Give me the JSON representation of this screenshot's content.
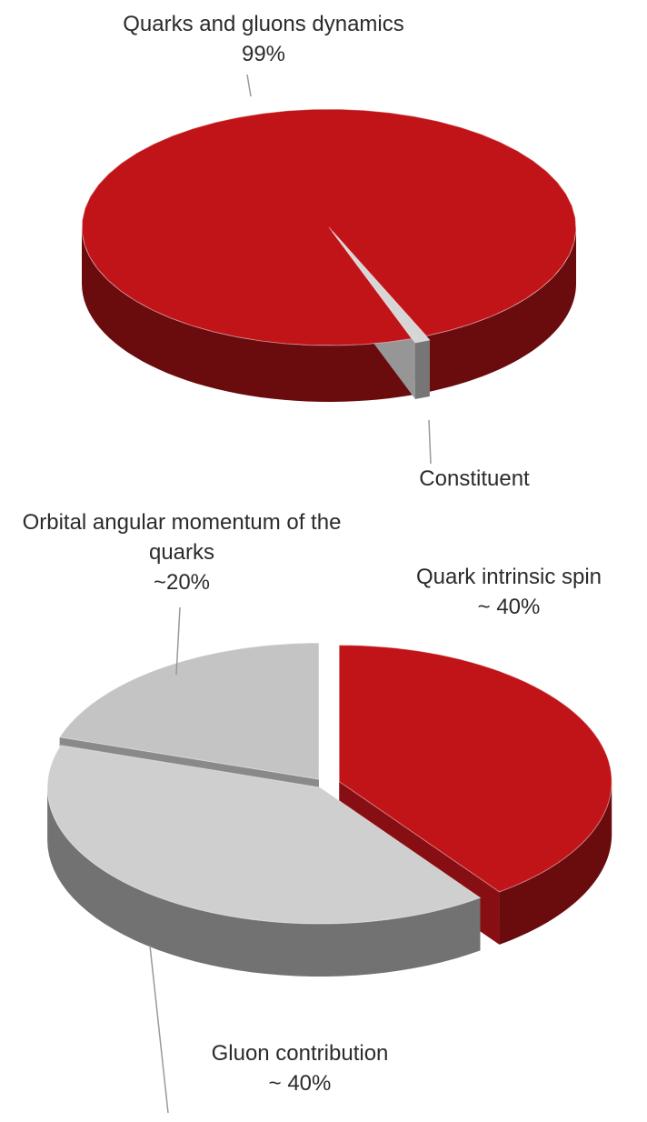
{
  "chart_data": [
    {
      "type": "pie3d",
      "categories": [
        "Quarks and gluons dynamics",
        "Constituent"
      ],
      "values": [
        99,
        1
      ],
      "value_labels": [
        "99%",
        null
      ],
      "colors": [
        "#c11419",
        "#d6d6d6"
      ]
    },
    {
      "type": "pie3d",
      "categories": [
        "Quark intrinsic spin",
        "Gluon contribution",
        "Orbital angular momentum of the quarks"
      ],
      "values": [
        40,
        40,
        20
      ],
      "value_labels": [
        "~ 40%",
        "~ 40%",
        "~20%"
      ],
      "colors": [
        "#c11419",
        "#cfcfcf",
        "#c4c4c4"
      ]
    }
  ]
}
